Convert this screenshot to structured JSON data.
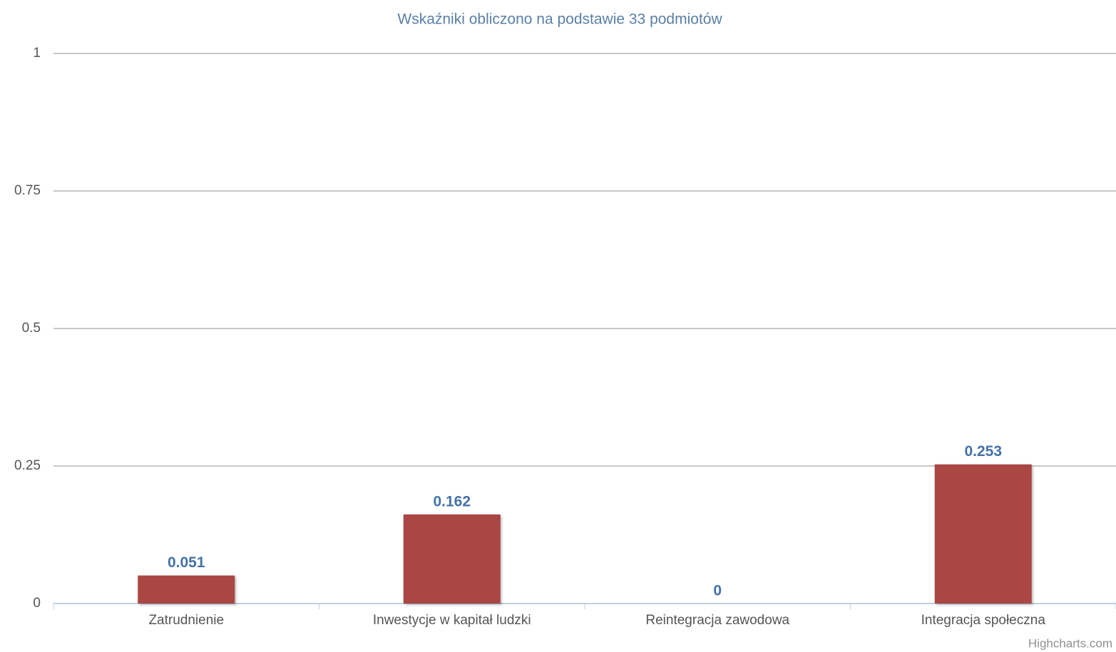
{
  "chart_data": {
    "type": "bar",
    "title": "Wskaźniki obliczono na podstawie 33 podmiotów",
    "categories": [
      "Zatrudnienie",
      "Inwestycje w kapitał ludzki",
      "Reintegracja zawodowa",
      "Integracja społeczna"
    ],
    "values": [
      0.051,
      0.162,
      0,
      0.253
    ],
    "color": "#AA4643",
    "ylim": [
      0,
      1
    ],
    "yticks": [
      0,
      0.25,
      0.5,
      0.75,
      1
    ],
    "grid": true,
    "credits": "Highcharts.com"
  }
}
